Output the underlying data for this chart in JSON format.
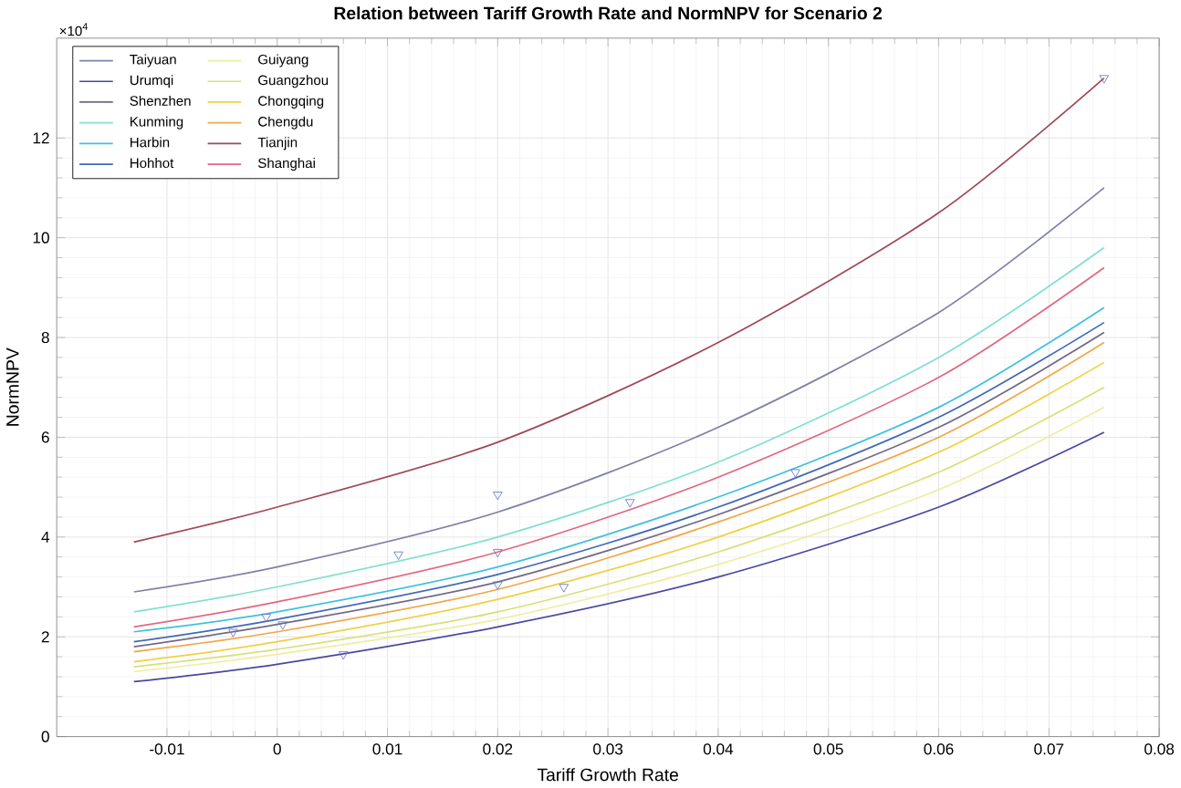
{
  "chart_data": {
    "type": "line",
    "title": "Relation between Tariff Growth Rate and NormNPV for Scenario 2",
    "xlabel": "Tariff Growth Rate",
    "ylabel": "NormNPV",
    "annotations": [
      "×10$^{4}$"
    ],
    "x": [
      -0.013,
      0,
      0.02,
      0.04,
      0.06,
      0.075
    ],
    "xlim": [
      -0.02,
      0.08
    ],
    "xticks": [
      -0.01,
      0,
      0.01,
      0.02,
      0.03,
      0.04,
      0.05,
      0.06,
      0.07,
      0.08
    ],
    "ylim": [
      0,
      14
    ],
    "yticks": [
      0,
      2,
      4,
      6,
      8,
      10,
      12
    ],
    "grid": true,
    "legend": "top left",
    "line_style": "solid",
    "series": [
      {
        "name": "Taiyuan",
        "color": "#8080a8",
        "values": [
          2.9,
          3.4,
          4.5,
          6.2,
          8.5,
          11.0
        ]
      },
      {
        "name": "Urumqi",
        "color": "#4848a0",
        "values": [
          1.1,
          1.45,
          2.2,
          3.2,
          4.6,
          6.1
        ]
      },
      {
        "name": "Shenzhen",
        "color": "#706888",
        "values": [
          1.8,
          2.25,
          3.1,
          4.45,
          6.2,
          8.1
        ]
      },
      {
        "name": "Kunming",
        "color": "#80e0d0",
        "values": [
          2.5,
          3.0,
          4.0,
          5.5,
          7.6,
          9.8
        ]
      },
      {
        "name": "Harbin",
        "color": "#40c0e0",
        "values": [
          2.1,
          2.5,
          3.4,
          4.8,
          6.6,
          8.6
        ]
      },
      {
        "name": "Hohhot",
        "color": "#4068b8",
        "values": [
          1.9,
          2.35,
          3.25,
          4.6,
          6.4,
          8.3
        ]
      },
      {
        "name": "Guiyang",
        "color": "#f0eca0",
        "values": [
          1.3,
          1.65,
          2.35,
          3.45,
          4.95,
          6.6
        ]
      },
      {
        "name": "Guangzhou",
        "color": "#d8e078",
        "values": [
          1.4,
          1.75,
          2.5,
          3.7,
          5.3,
          7.0
        ]
      },
      {
        "name": "Chongqing",
        "color": "#f0d040",
        "values": [
          1.5,
          1.9,
          2.75,
          4.0,
          5.7,
          7.5
        ]
      },
      {
        "name": "Chengdu",
        "color": "#f0a848",
        "values": [
          1.7,
          2.1,
          2.95,
          4.3,
          6.0,
          7.9
        ]
      },
      {
        "name": "Tianjin",
        "color": "#a04858",
        "values": [
          3.9,
          4.6,
          5.9,
          7.9,
          10.5,
          13.2
        ]
      },
      {
        "name": "Shanghai",
        "color": "#e06880",
        "values": [
          2.2,
          2.7,
          3.7,
          5.2,
          7.2,
          9.4
        ]
      },
      {
        "type": "scatter",
        "marker": "triangle",
        "color": "#6878c0",
        "x": [
          -0.004,
          -0.001,
          0.0005,
          0.006,
          0.011,
          0.02,
          0.02,
          0.02,
          0.026,
          0.032,
          0.047,
          0.075
        ],
        "values": [
          2.1,
          2.4,
          2.25,
          1.65,
          3.65,
          4.85,
          3.7,
          3.05,
          3.0,
          4.7,
          5.3,
          13.2
        ]
      }
    ]
  }
}
